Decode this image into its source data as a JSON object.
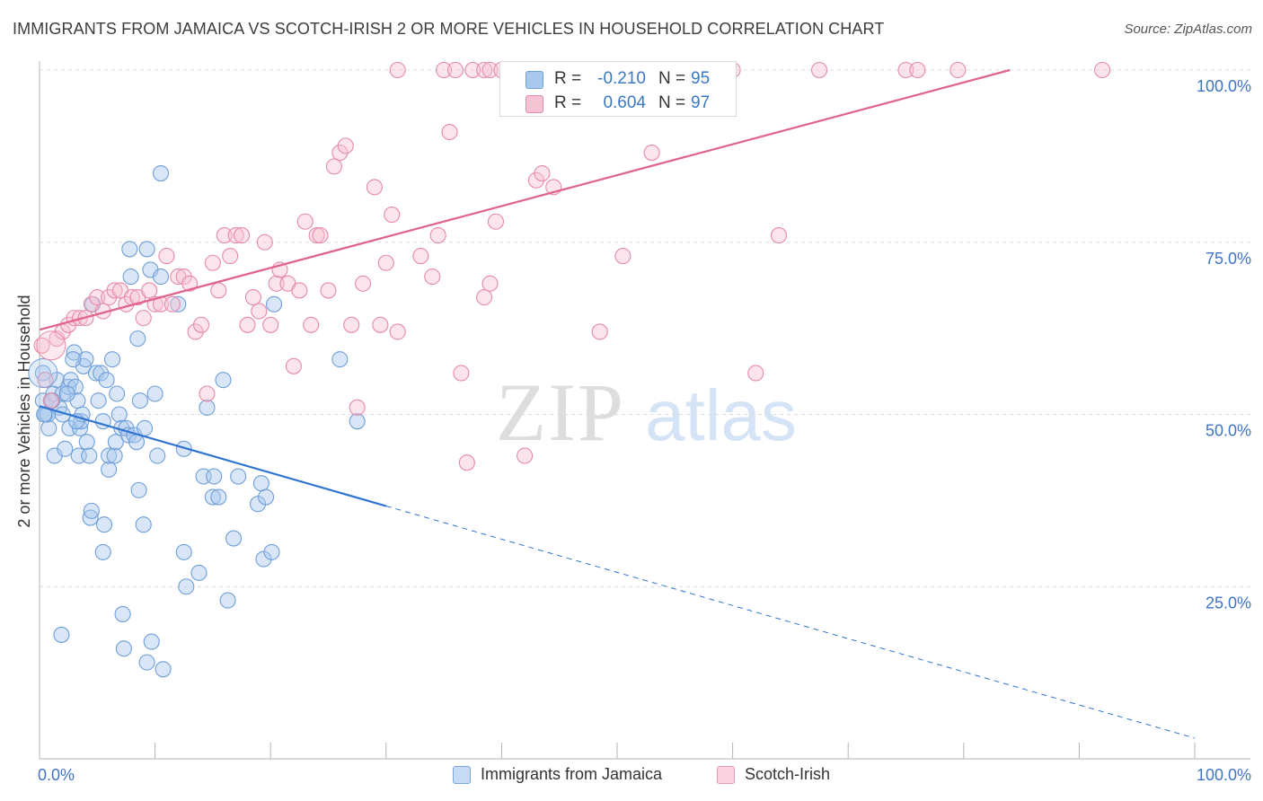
{
  "header": {
    "title": "IMMIGRANTS FROM JAMAICA VS SCOTCH-IRISH 2 OR MORE VEHICLES IN HOUSEHOLD CORRELATION CHART",
    "source": "Source: ZipAtlas.com"
  },
  "watermark": {
    "part1": "ZIP",
    "part2": "atlas"
  },
  "stats": [
    {
      "r_label": "R =",
      "r_value": "-0.210",
      "n_label": "N =",
      "n_value": "95",
      "color": "#a9c8ee",
      "border": "#6f9fd8"
    },
    {
      "r_label": "R =",
      "r_value": "0.604",
      "n_label": "N =",
      "n_value": "97",
      "color": "#f6c3d3",
      "border": "#e58aa8"
    }
  ],
  "legend": [
    {
      "label": "Immigrants from Jamaica",
      "color": "#c5daf4",
      "border": "#7ba7de"
    },
    {
      "label": "Scotch-Irish",
      "color": "#f9d3df",
      "border": "#e898b2"
    }
  ],
  "chart_data": {
    "type": "scatter",
    "ylabel": "2 or more Vehicles in Household",
    "xlim": [
      0,
      100
    ],
    "ylim": [
      0,
      100
    ],
    "x_tick_labels": [
      "0.0%",
      "100.0%"
    ],
    "y_ticks": [
      25,
      50,
      75,
      100
    ],
    "y_tick_labels": [
      "25.0%",
      "50.0%",
      "75.0%",
      "100.0%"
    ],
    "grid": "dashed horizontal",
    "legend_position": "bottom",
    "series": [
      {
        "name": "Immigrants from Jamaica",
        "color": "#6f9fd8",
        "fill": "rgba(169,200,238,0.45)",
        "trend": {
          "x": [
            0,
            30
          ],
          "y": [
            51.2,
            36.7
          ],
          "dashed_to": [
            100,
            3.0
          ],
          "color": "#2f74d0"
        },
        "points": [
          [
            0.3,
            56
          ],
          [
            0.3,
            52
          ],
          [
            0.5,
            50
          ],
          [
            0.8,
            48
          ],
          [
            1,
            52
          ],
          [
            1.2,
            53
          ],
          [
            1.3,
            44
          ],
          [
            1.5,
            55
          ],
          [
            1.7,
            51
          ],
          [
            2,
            53
          ],
          [
            2,
            50
          ],
          [
            2.2,
            45
          ],
          [
            2.5,
            54
          ],
          [
            2.7,
            55
          ],
          [
            2.6,
            48
          ],
          [
            3,
            59
          ],
          [
            3.1,
            54
          ],
          [
            3.3,
            52
          ],
          [
            3.4,
            44
          ],
          [
            3.5,
            48
          ],
          [
            3.6,
            49
          ],
          [
            3.7,
            50
          ],
          [
            3.8,
            57
          ],
          [
            4,
            58
          ],
          [
            4.1,
            46
          ],
          [
            4.3,
            44
          ],
          [
            4.4,
            35
          ],
          [
            4.5,
            36
          ],
          [
            4.6,
            66
          ],
          [
            4.9,
            56
          ],
          [
            5.1,
            52
          ],
          [
            5.3,
            56
          ],
          [
            5.5,
            49
          ],
          [
            5.5,
            30
          ],
          [
            5.6,
            34
          ],
          [
            5.8,
            55
          ],
          [
            6,
            42
          ],
          [
            6,
            44
          ],
          [
            6.3,
            58
          ],
          [
            6.5,
            44
          ],
          [
            6.6,
            46
          ],
          [
            6.7,
            53
          ],
          [
            6.9,
            50
          ],
          [
            7.1,
            48
          ],
          [
            7.2,
            21
          ],
          [
            7.3,
            16
          ],
          [
            7.5,
            48
          ],
          [
            7.7,
            47
          ],
          [
            7.8,
            74
          ],
          [
            7.9,
            70
          ],
          [
            8.2,
            47
          ],
          [
            8.4,
            46
          ],
          [
            8.5,
            61
          ],
          [
            8.6,
            39
          ],
          [
            8.7,
            52
          ],
          [
            9,
            34
          ],
          [
            9.1,
            48
          ],
          [
            9.3,
            74
          ],
          [
            9.3,
            14
          ],
          [
            9.6,
            71
          ],
          [
            9.7,
            17
          ],
          [
            10,
            53
          ],
          [
            10.2,
            44
          ],
          [
            10.5,
            85
          ],
          [
            10.5,
            70
          ],
          [
            10.7,
            13
          ],
          [
            12,
            66
          ],
          [
            12.5,
            45
          ],
          [
            12.5,
            30
          ],
          [
            12.7,
            25
          ],
          [
            13.8,
            27
          ],
          [
            14.2,
            41
          ],
          [
            14.5,
            51
          ],
          [
            15,
            38
          ],
          [
            15.1,
            41
          ],
          [
            15.5,
            38
          ],
          [
            15.9,
            55
          ],
          [
            16.3,
            23
          ],
          [
            16.8,
            32
          ],
          [
            17.2,
            41
          ],
          [
            18.9,
            37
          ],
          [
            19.2,
            40
          ],
          [
            19.4,
            29
          ],
          [
            19.6,
            38
          ],
          [
            20.1,
            30
          ],
          [
            20.3,
            66
          ],
          [
            26,
            58
          ],
          [
            27.5,
            49
          ],
          [
            0.7,
            50
          ],
          [
            1.9,
            18
          ],
          [
            3.2,
            49
          ],
          [
            2.4,
            53
          ],
          [
            1.1,
            52
          ],
          [
            0.4,
            50
          ],
          [
            2.9,
            58
          ]
        ]
      },
      {
        "name": "Scotch-Irish",
        "color": "#e58aa8",
        "fill": "rgba(246,195,211,0.45)",
        "trend": {
          "x": [
            0,
            84
          ],
          "y": [
            62.3,
            100
          ],
          "color": "#e0638f"
        },
        "points": [
          [
            0.2,
            60
          ],
          [
            0.5,
            55
          ],
          [
            1,
            52
          ],
          [
            1.5,
            61
          ],
          [
            2,
            62
          ],
          [
            2.5,
            63
          ],
          [
            3,
            64
          ],
          [
            3.5,
            64
          ],
          [
            4,
            64
          ],
          [
            4.5,
            66
          ],
          [
            5,
            67
          ],
          [
            5.5,
            65
          ],
          [
            6,
            67
          ],
          [
            6.5,
            68
          ],
          [
            7,
            68
          ],
          [
            7.5,
            66
          ],
          [
            8,
            67
          ],
          [
            8.5,
            67
          ],
          [
            9,
            64
          ],
          [
            9.5,
            68
          ],
          [
            10,
            66
          ],
          [
            10.5,
            66
          ],
          [
            11,
            73
          ],
          [
            11.5,
            66
          ],
          [
            12,
            70
          ],
          [
            12.5,
            70
          ],
          [
            13,
            69
          ],
          [
            13.5,
            62
          ],
          [
            14,
            63
          ],
          [
            14.5,
            53
          ],
          [
            15,
            72
          ],
          [
            15.5,
            68
          ],
          [
            16,
            76
          ],
          [
            16.5,
            73
          ],
          [
            17,
            76
          ],
          [
            17.5,
            76
          ],
          [
            18,
            63
          ],
          [
            18.5,
            67
          ],
          [
            19,
            65
          ],
          [
            19.5,
            75
          ],
          [
            20,
            63
          ],
          [
            20.5,
            69
          ],
          [
            20.8,
            71
          ],
          [
            21.5,
            69
          ],
          [
            22,
            57
          ],
          [
            22.5,
            68
          ],
          [
            23,
            78
          ],
          [
            23.5,
            63
          ],
          [
            24,
            76
          ],
          [
            24.3,
            76
          ],
          [
            25,
            68
          ],
          [
            25.5,
            86
          ],
          [
            26,
            88
          ],
          [
            26.5,
            89
          ],
          [
            27,
            63
          ],
          [
            27.5,
            51
          ],
          [
            28,
            69
          ],
          [
            29,
            83
          ],
          [
            29.5,
            63
          ],
          [
            30,
            72
          ],
          [
            30.5,
            79
          ],
          [
            31,
            62
          ],
          [
            33,
            73
          ],
          [
            34,
            70
          ],
          [
            34.5,
            76
          ],
          [
            35.5,
            91
          ],
          [
            36.5,
            56
          ],
          [
            37,
            43
          ],
          [
            38.5,
            67
          ],
          [
            39,
            69
          ],
          [
            39.5,
            78
          ],
          [
            42,
            44
          ],
          [
            43,
            84
          ],
          [
            43.5,
            85
          ],
          [
            44.5,
            83
          ],
          [
            48.5,
            62
          ],
          [
            50.5,
            73
          ],
          [
            53,
            88
          ],
          [
            62,
            56
          ],
          [
            64,
            76
          ],
          [
            35,
            100
          ],
          [
            31,
            100
          ],
          [
            36,
            100
          ],
          [
            37.5,
            100
          ],
          [
            38.5,
            100
          ],
          [
            39,
            100
          ],
          [
            40,
            100
          ],
          [
            41,
            100
          ],
          [
            42,
            100
          ],
          [
            45,
            100
          ],
          [
            56,
            100
          ],
          [
            60,
            100
          ],
          [
            67.5,
            100
          ],
          [
            75,
            100
          ],
          [
            76,
            100
          ],
          [
            79.5,
            100
          ],
          [
            92,
            100
          ]
        ]
      }
    ]
  }
}
